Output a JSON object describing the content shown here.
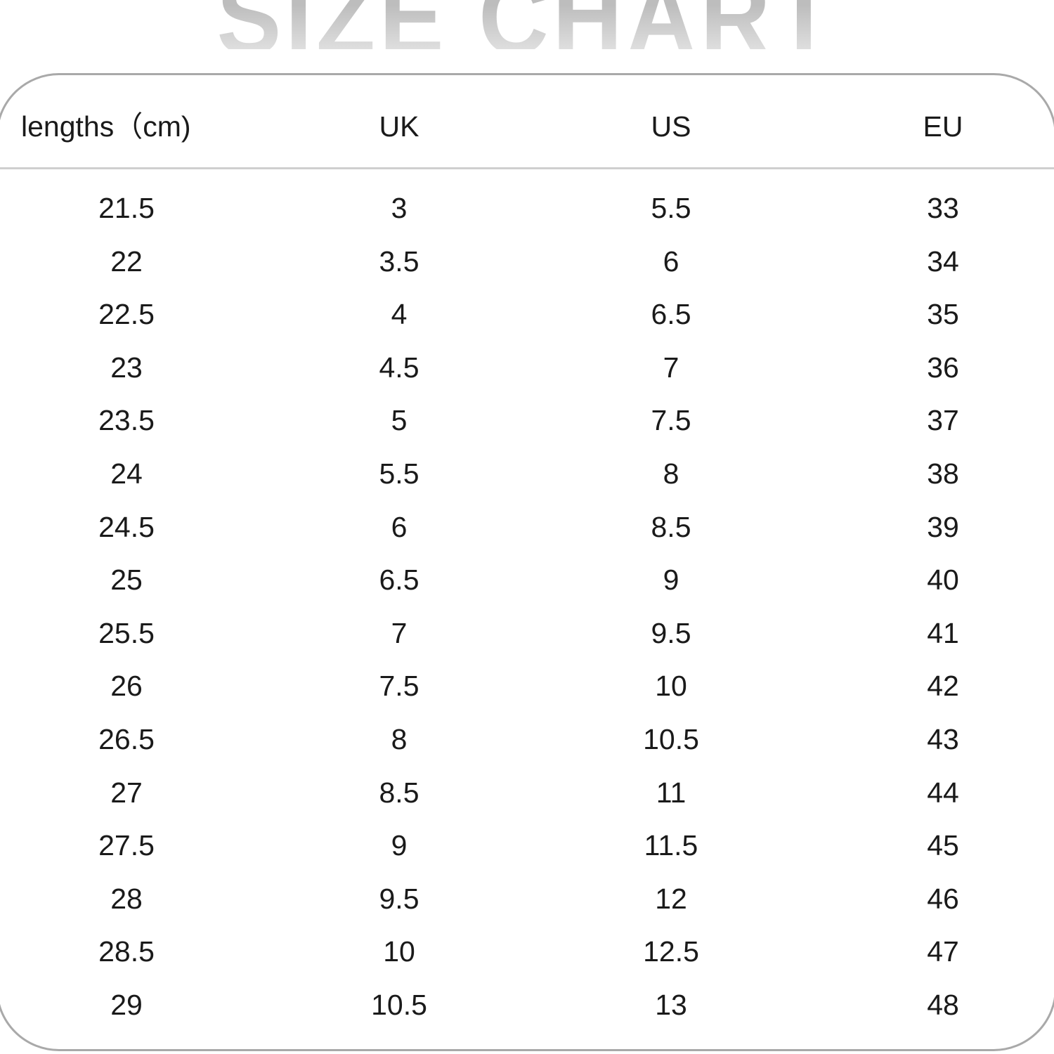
{
  "title": "SIZE CHART",
  "headers": [
    "lengths（cm)",
    "UK",
    "US",
    "EU"
  ],
  "rows": [
    [
      "21.5",
      "3",
      "5.5",
      "33"
    ],
    [
      "22",
      "3.5",
      "6",
      "34"
    ],
    [
      "22.5",
      "4",
      "6.5",
      "35"
    ],
    [
      "23",
      "4.5",
      "7",
      "36"
    ],
    [
      "23.5",
      "5",
      "7.5",
      "37"
    ],
    [
      "24",
      "5.5",
      "8",
      "38"
    ],
    [
      "24.5",
      "6",
      "8.5",
      "39"
    ],
    [
      "25",
      "6.5",
      "9",
      "40"
    ],
    [
      "25.5",
      "7",
      "9.5",
      "41"
    ],
    [
      "26",
      "7.5",
      "10",
      "42"
    ],
    [
      "26.5",
      "8",
      "10.5",
      "43"
    ],
    [
      "27",
      "8.5",
      "11",
      "44"
    ],
    [
      "27.5",
      "9",
      "11.5",
      "45"
    ],
    [
      "28",
      "9.5",
      "12",
      "46"
    ],
    [
      "28.5",
      "10",
      "12.5",
      "47"
    ],
    [
      "29",
      "10.5",
      "13",
      "48"
    ]
  ]
}
